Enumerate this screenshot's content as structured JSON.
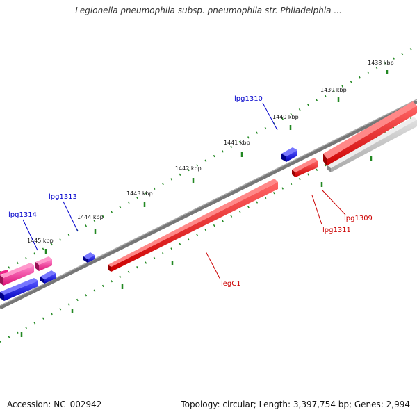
{
  "title": "Legionella pneumophila subsp. pneumophila str. Philadelphia ...",
  "footer": {
    "accession": "Accession: NC_002942",
    "stats": "Topology: circular; Length: 3,397,754 bp; Genes: 2,994"
  },
  "colors": {
    "forward_gene": "#0000ee",
    "reverse_gene": "#ee0000",
    "rna_gene": "#ff3399",
    "pseudo_gene": "#bbbbbb",
    "backbone": "#777777",
    "ticks": "#228822",
    "forward_label": "#0000cc",
    "reverse_label": "#cc0000"
  },
  "scale_labels": [
    "1438 kbp",
    "1439 kbp",
    "1440 kbp",
    "1441 kbp",
    "1442 kbp",
    "1443 kbp",
    "1444 kbp",
    "1445 kbp"
  ],
  "gene_labels": {
    "lpg1310": "lpg1310",
    "lpg1313": "lpg1313",
    "lpg1314": "lpg1314",
    "lpg1309": "lpg1309",
    "lpg1311": "lpg1311",
    "legC1": "legC1"
  }
}
